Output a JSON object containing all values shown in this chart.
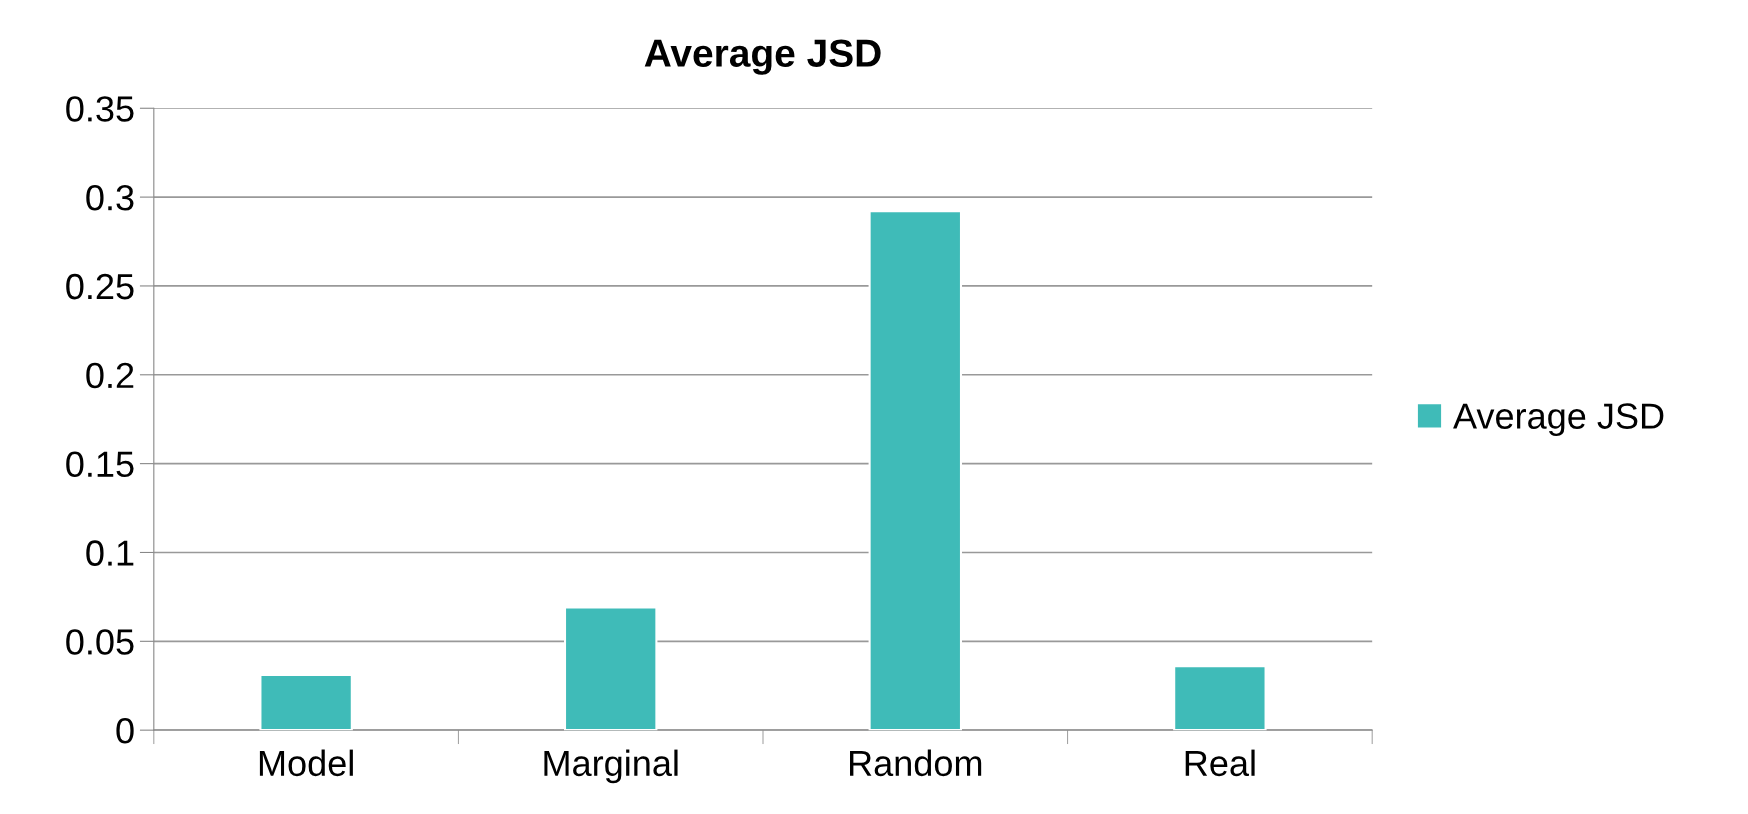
{
  "chart_data": {
    "type": "bar",
    "title": "Average JSD",
    "categories": [
      "Model",
      "Marginal",
      "Random",
      "Real"
    ],
    "series": [
      {
        "name": "Average JSD",
        "color": "#3fbbb8",
        "values": [
          0.031,
          0.069,
          0.292,
          0.036
        ]
      }
    ],
    "ylim": [
      0,
      0.35
    ],
    "yticks": [
      {
        "value": 0,
        "label": "0"
      },
      0.05,
      0.1,
      0.15,
      0.2,
      0.25,
      0.3,
      0.35
    ],
    "grid": "y",
    "legend": "right"
  }
}
